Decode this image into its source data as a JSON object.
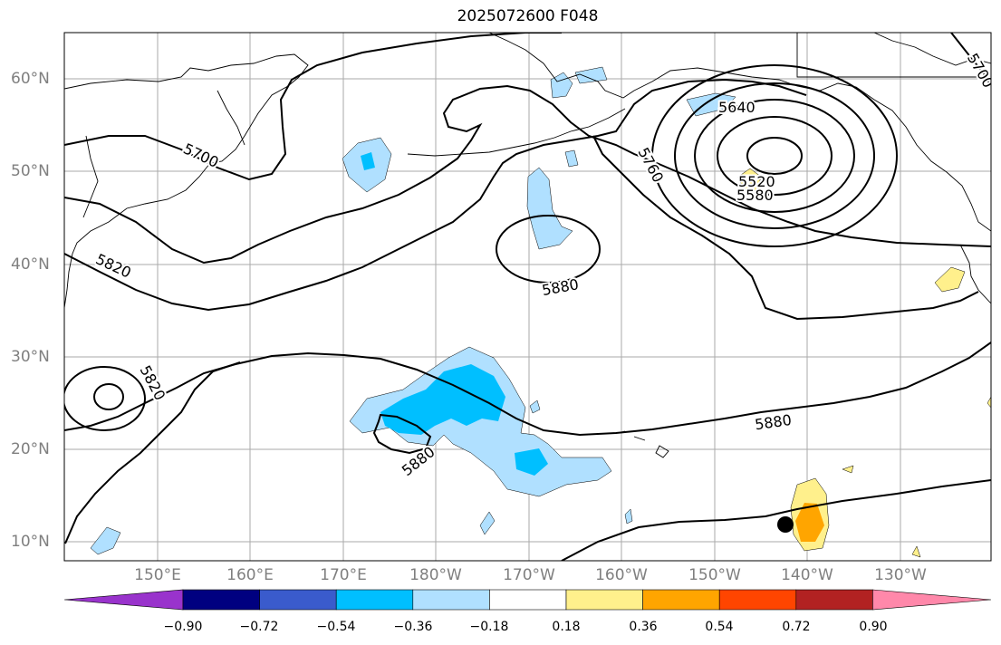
{
  "title": "2025072600 F048",
  "lat_labels": [
    "60°N",
    "50°N",
    "40°N",
    "30°N",
    "20°N",
    "10°N"
  ],
  "lon_labels": [
    "150°E",
    "160°E",
    "170°E",
    "180°W",
    "170°W",
    "160°W",
    "150°W",
    "140°W",
    "130°W"
  ],
  "contour_labels": {
    "c5700_w": "5700",
    "c5700_ne": "5700",
    "c5820_w": "5820",
    "c5820_sw": "5820",
    "c5880_c": "5880",
    "c5880_s": "5880",
    "c5880_e": "5880",
    "c5760": "5760",
    "c5640": "5640",
    "c5580": "5580",
    "c5520": "5520"
  },
  "colorbar": {
    "labels": [
      "−0.90",
      "−0.72",
      "−0.54",
      "−0.36",
      "−0.18",
      "0.18",
      "0.36",
      "0.54",
      "0.72",
      "0.90"
    ],
    "colors": [
      "#9933cc",
      "#000080",
      "#3a5bcc",
      "#00bfff",
      "#b0e0ff",
      "#ffffff",
      "#fff08c",
      "#ffa500",
      "#ff4500",
      "#b22222",
      "#ff88aa"
    ]
  },
  "shading_colors": {
    "light_blue": "#b0e0ff",
    "blue": "#00bfff",
    "light_yellow": "#fff08c",
    "orange": "#ffa500"
  },
  "marker": {
    "type": "black-dot",
    "lon": "142°W",
    "lat": "12°N"
  }
}
